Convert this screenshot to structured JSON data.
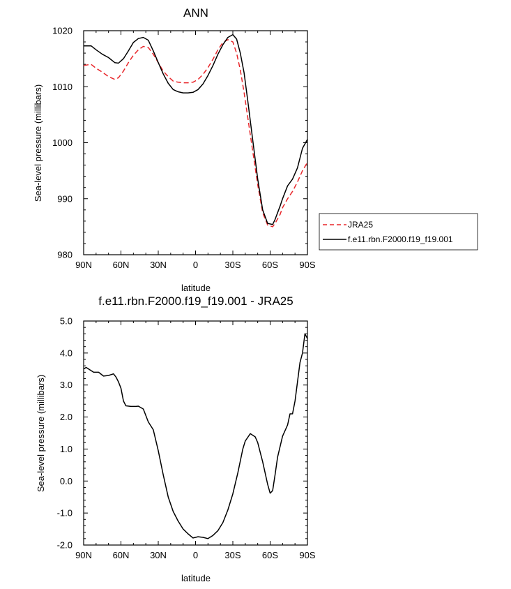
{
  "chart_data": [
    {
      "type": "line",
      "title": "ANN",
      "xlabel": "latitude",
      "ylabel": "Sea-level pressure (millibars)",
      "xlim": [
        90,
        -90
      ],
      "ylim": [
        980,
        1020
      ],
      "x_tick_values": [
        90,
        60,
        30,
        0,
        -30,
        -60,
        -90
      ],
      "x_tick_labels": [
        "90N",
        "60N",
        "30N",
        "0",
        "30S",
        "60S",
        "90S"
      ],
      "y_tick_values": [
        980,
        990,
        1000,
        1010,
        1020
      ],
      "y_tick_labels": [
        "980",
        "990",
        "1000",
        "1010",
        "1020"
      ],
      "legend_position": "right",
      "series": [
        {
          "name": "JRA25",
          "color": "#e8262a",
          "dash": "dashed",
          "x": [
            90,
            84,
            80,
            75,
            70,
            65,
            62,
            58,
            54,
            50,
            46,
            42,
            38,
            34,
            30,
            26,
            22,
            18,
            14,
            10,
            6,
            2,
            -2,
            -6,
            -10,
            -14,
            -18,
            -22,
            -26,
            -30,
            -33,
            -36,
            -39,
            -42,
            -46,
            -50,
            -54,
            -58,
            -62,
            -64,
            -66,
            -68,
            -70,
            -74,
            -78,
            -82,
            -86,
            -90
          ],
          "y": [
            1013.8,
            1014.0,
            1013.3,
            1012.6,
            1011.8,
            1011.3,
            1011.6,
            1012.8,
            1014.3,
            1015.6,
            1016.6,
            1017.2,
            1017.0,
            1015.8,
            1014.3,
            1012.8,
            1011.8,
            1011.0,
            1010.8,
            1010.7,
            1010.7,
            1010.8,
            1011.3,
            1012.2,
            1013.4,
            1014.9,
            1016.6,
            1017.9,
            1018.4,
            1018.0,
            1016.0,
            1013.0,
            1009.0,
            1004.5,
            998.5,
            992.5,
            987.5,
            985.3,
            985.0,
            985.6,
            986.4,
            987.2,
            988.4,
            990.0,
            991.3,
            993.0,
            995.0,
            996.5
          ]
        },
        {
          "name": "f.e11.rbn.F2000.f19_f19.001",
          "color": "#000000",
          "dash": "solid",
          "x": [
            90,
            84,
            80,
            75,
            70,
            65,
            62,
            58,
            54,
            50,
            46,
            42,
            38,
            34,
            30,
            26,
            22,
            18,
            14,
            10,
            6,
            2,
            -2,
            -6,
            -10,
            -14,
            -18,
            -22,
            -26,
            -30,
            -33,
            -36,
            -39,
            -42,
            -46,
            -50,
            -54,
            -58,
            -62,
            -64,
            -66,
            -68,
            -70,
            -74,
            -78,
            -82,
            -86,
            -90
          ],
          "y": [
            1017.3,
            1017.3,
            1016.6,
            1015.8,
            1015.2,
            1014.3,
            1014.2,
            1015.0,
            1016.4,
            1017.9,
            1018.6,
            1018.8,
            1018.3,
            1016.4,
            1014.3,
            1012.3,
            1010.6,
            1009.5,
            1009.1,
            1008.9,
            1008.9,
            1009.0,
            1009.5,
            1010.5,
            1012.0,
            1013.8,
            1015.8,
            1017.5,
            1018.8,
            1019.3,
            1018.5,
            1016.0,
            1012.5,
            1007.5,
            1000.5,
            993.5,
            988.0,
            985.6,
            985.4,
            986.3,
            987.5,
            988.7,
            990.0,
            992.3,
            993.5,
            995.5,
            999.0,
            1000.6
          ]
        }
      ]
    },
    {
      "type": "line",
      "title": "f.e11.rbn.F2000.f19_f19.001 - JRA25",
      "xlabel": "latitude",
      "ylabel": "Sea-level pressure (millibars)",
      "xlim": [
        90,
        -90
      ],
      "ylim": [
        -2.0,
        5.0
      ],
      "x_tick_values": [
        90,
        60,
        30,
        0,
        -30,
        -60,
        -90
      ],
      "x_tick_labels": [
        "90N",
        "60N",
        "30N",
        "0",
        "30S",
        "60S",
        "90S"
      ],
      "y_tick_values": [
        -2.0,
        -1.0,
        0.0,
        1.0,
        2.0,
        3.0,
        4.0,
        5.0
      ],
      "y_tick_labels": [
        "-2.0",
        "-1.0",
        "0.0",
        "1.0",
        "2.0",
        "3.0",
        "4.0",
        "5.0"
      ],
      "series": [
        {
          "color": "#000000",
          "dash": "solid",
          "x": [
            90,
            88,
            86,
            82,
            78,
            74,
            70,
            66,
            64,
            62,
            60,
            58,
            56,
            52,
            48,
            46,
            42,
            38,
            34,
            30,
            26,
            22,
            18,
            14,
            10,
            6,
            2,
            -2,
            -6,
            -10,
            -14,
            -18,
            -22,
            -26,
            -30,
            -34,
            -38,
            -40,
            -44,
            -48,
            -50,
            -54,
            -58,
            -60,
            -62,
            -64,
            -66,
            -70,
            -74,
            -76,
            -78,
            -80,
            -84,
            -86,
            -88,
            -90
          ],
          "y": [
            3.5,
            3.55,
            3.5,
            3.4,
            3.4,
            3.28,
            3.3,
            3.35,
            3.25,
            3.1,
            2.9,
            2.5,
            2.35,
            2.33,
            2.33,
            2.34,
            2.25,
            1.85,
            1.6,
            0.95,
            0.2,
            -0.5,
            -0.95,
            -1.25,
            -1.5,
            -1.65,
            -1.78,
            -1.74,
            -1.76,
            -1.8,
            -1.7,
            -1.55,
            -1.3,
            -0.9,
            -0.4,
            0.25,
            1.0,
            1.25,
            1.48,
            1.38,
            1.2,
            0.6,
            -0.1,
            -0.38,
            -0.3,
            0.2,
            0.75,
            1.4,
            1.75,
            2.1,
            2.1,
            2.5,
            3.7,
            4.0,
            4.6,
            4.45
          ]
        }
      ]
    }
  ]
}
